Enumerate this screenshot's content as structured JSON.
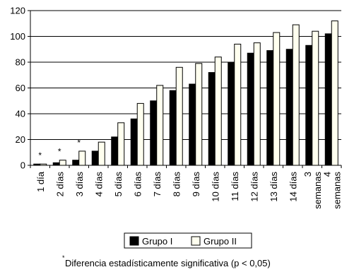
{
  "chart_data": {
    "type": "bar",
    "categories": [
      "1 día",
      "2 días",
      "3 días",
      "4 días",
      "5 días",
      "6 días",
      "7 días",
      "8 días",
      "9 días",
      "10 días",
      "11 días",
      "12 días",
      "13 días",
      "14 días",
      "3 semanas",
      "4 semanas"
    ],
    "series": [
      {
        "name": "Grupo I",
        "color": "#000000",
        "values": [
          1,
          2,
          4,
          11,
          22,
          36,
          50,
          58,
          63,
          72,
          80,
          87,
          89,
          90,
          93,
          102
        ]
      },
      {
        "name": "Grupo II",
        "color": "#ffffef",
        "values": [
          1,
          4,
          11,
          18,
          33,
          48,
          62,
          76,
          79,
          84,
          94,
          95,
          103,
          109,
          104,
          112
        ]
      }
    ],
    "significant_markers": [
      {
        "category_index": 0,
        "symbol": "*"
      },
      {
        "category_index": 1,
        "symbol": "*"
      },
      {
        "category_index": 2,
        "symbol": "*"
      }
    ],
    "ylim": [
      0,
      120
    ],
    "yticks": [
      0,
      20,
      40,
      60,
      80,
      100,
      120
    ],
    "title": "",
    "xlabel": "",
    "ylabel": "",
    "grid": true,
    "legend_position": "bottom-center"
  },
  "footnote": {
    "marker": "*",
    "text": "Diferencia estadísticamente significativa (p < 0,05)"
  }
}
